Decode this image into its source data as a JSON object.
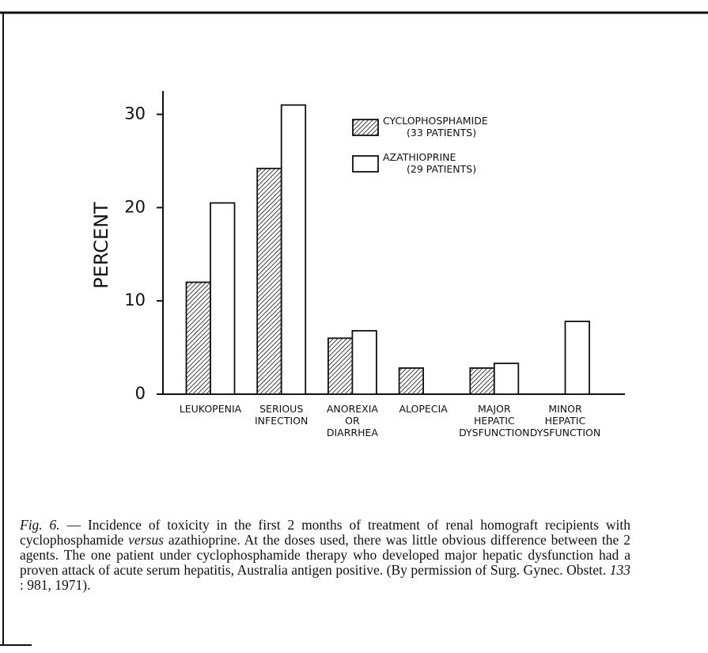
{
  "chart_data": {
    "type": "bar",
    "ylabel": "PERCENT",
    "categories": [
      "LEUKOPENIA",
      "SERIOUS\nINFECTION",
      "ANOREXIA\nOR\nDIARRHEA",
      "ALOPECIA",
      "MAJOR\nHEPATIC\nDYSFUNCTION",
      "MINOR\nHEPATIC\nDYSFUNCTION"
    ],
    "series": [
      {
        "name": "CYCLOPHOSPHAMIDE\n(33 PATIENTS)",
        "fill": "hatched",
        "values": [
          12,
          24.2,
          6,
          2.8,
          2.8,
          0
        ]
      },
      {
        "name": "AZATHIOPRINE\n(29 PATIENTS)",
        "fill": "white",
        "values": [
          20.5,
          31,
          6.8,
          0,
          3.3,
          7.8
        ]
      }
    ],
    "ylim": [
      0,
      32.5
    ],
    "yticks": [
      0,
      10,
      20,
      30
    ]
  },
  "caption": [
    {
      "text": "Fig. 6.",
      "italic": true
    },
    {
      "text": " — Incidence of toxicity in the first 2 months of treatment of renal homograft recipients with cyclophosphamide ",
      "italic": false
    },
    {
      "text": "versus",
      "italic": true
    },
    {
      "text": " azathioprine. At the doses used, there was little obvious difference between the 2 agents. The one patient under cyclophosphamide therapy who developed major hepatic dysfunction had a proven attack of acute serum hepatitis, Australia antigen positive. (By permission of Surg. Gynec. Obstet. ",
      "italic": false
    },
    {
      "text": "133",
      "italic": true
    },
    {
      "text": " : 981, 1971).",
      "italic": false
    }
  ]
}
